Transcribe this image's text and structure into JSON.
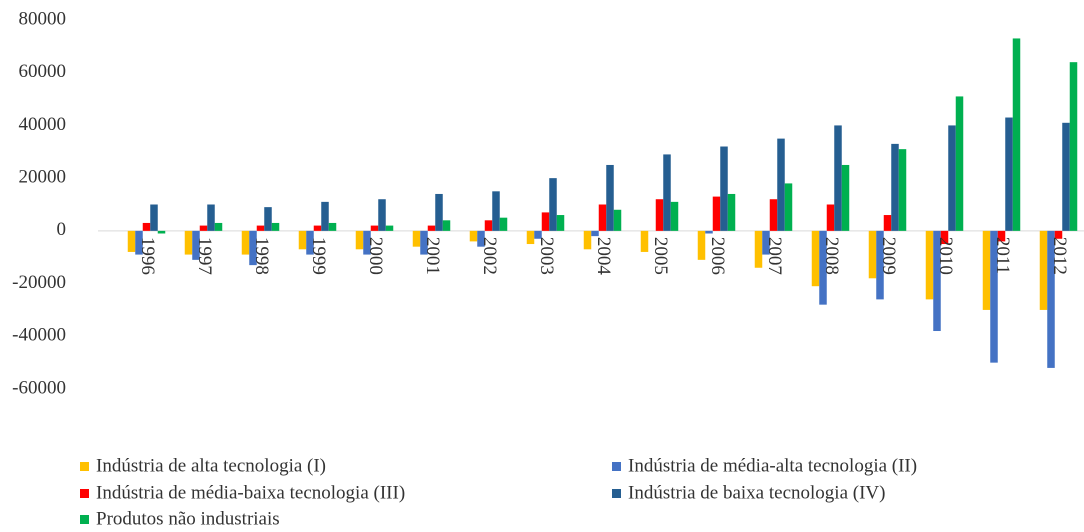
{
  "chart_data": {
    "type": "bar",
    "categories": [
      "1996",
      "1997",
      "1998",
      "1999",
      "2000",
      "2001",
      "2002",
      "2003",
      "2004",
      "2005",
      "2006",
      "2007",
      "2008",
      "2009",
      "2010",
      "2011",
      "2012"
    ],
    "series": [
      {
        "name": "Indústria de alta tecnologia (I)",
        "color": "#FFC000",
        "values": [
          -8000,
          -9000,
          -9000,
          -7000,
          -7000,
          -6000,
          -4000,
          -5000,
          -7000,
          -8000,
          -11000,
          -14000,
          -21000,
          -18000,
          -26000,
          -30000,
          -30000
        ]
      },
      {
        "name": "Indústria de média-alta tecnologia (II)",
        "color": "#4472C4",
        "values": [
          -9000,
          -11000,
          -13000,
          -9000,
          -9000,
          -9000,
          -6000,
          -3000,
          -2000,
          0,
          -1000,
          -9000,
          -28000,
          -26000,
          -38000,
          -50000,
          -52000
        ]
      },
      {
        "name": "Indústria de média-baixa tecnologia (III)",
        "color": "#FF0000",
        "values": [
          3000,
          2000,
          2000,
          2000,
          2000,
          2000,
          4000,
          7000,
          10000,
          12000,
          13000,
          12000,
          10000,
          6000,
          -5000,
          -4000,
          -3000
        ]
      },
      {
        "name": "Indústria de baixa tecnologia (IV)",
        "color": "#255E91",
        "values": [
          10000,
          10000,
          9000,
          11000,
          12000,
          14000,
          15000,
          20000,
          25000,
          29000,
          32000,
          35000,
          40000,
          33000,
          40000,
          43000,
          41000
        ]
      },
      {
        "name": "Produtos não industriais",
        "color": "#00B050",
        "values": [
          -1000,
          3000,
          3000,
          3000,
          2000,
          4000,
          5000,
          6000,
          8000,
          11000,
          14000,
          18000,
          25000,
          31000,
          51000,
          73000,
          64000
        ]
      }
    ],
    "ylim": [
      -60000,
      80000
    ],
    "yticks": [
      -60000,
      -40000,
      -20000,
      0,
      20000,
      40000,
      60000,
      80000
    ],
    "legend": "bottom"
  }
}
